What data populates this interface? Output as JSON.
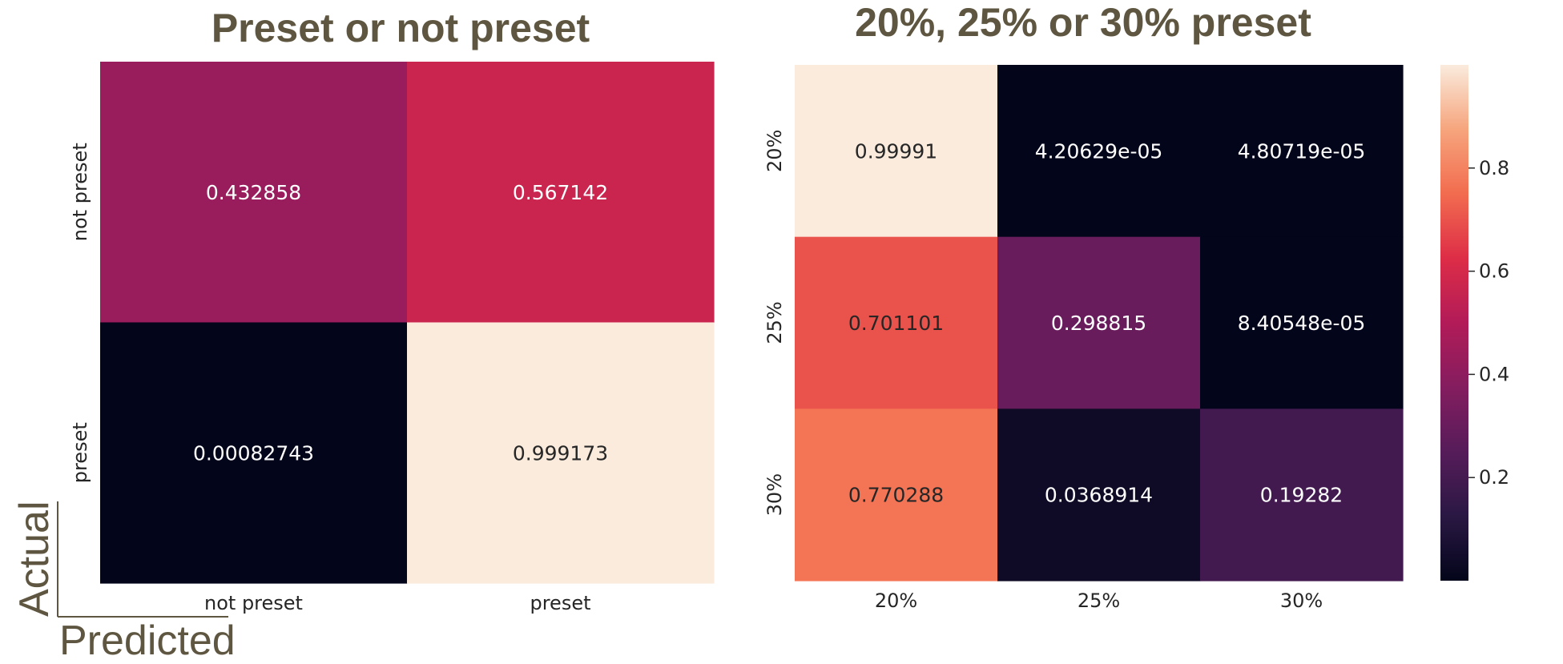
{
  "chart_data": [
    {
      "type": "heatmap",
      "title": "Preset or not preset",
      "x_categories": [
        "not preset",
        "preset"
      ],
      "y_categories": [
        "not preset",
        "preset"
      ],
      "values": [
        [
          0.432858,
          0.567142
        ],
        [
          0.00082743,
          0.999173
        ]
      ],
      "value_labels": [
        [
          "0.432858",
          "0.567142"
        ],
        [
          "0.00082743",
          "0.999173"
        ]
      ],
      "colormap": "rocket",
      "vmin": 0.0,
      "vmax": 1.0,
      "colorbar": false
    },
    {
      "type": "heatmap",
      "title": "20%, 25% or 30% preset",
      "x_categories": [
        "20%",
        "25%",
        "30%"
      ],
      "y_categories": [
        "20%",
        "25%",
        "30%"
      ],
      "values": [
        [
          0.99991,
          4.20629e-05,
          4.80719e-05
        ],
        [
          0.701101,
          0.298815,
          8.40548e-05
        ],
        [
          0.770288,
          0.0368914,
          0.19282
        ]
      ],
      "value_labels": [
        [
          "0.99991",
          "4.20629e-05",
          "4.80719e-05"
        ],
        [
          "0.701101",
          "0.298815",
          "8.40548e-05"
        ],
        [
          "0.770288",
          "0.0368914",
          "0.19282"
        ]
      ],
      "colormap": "rocket",
      "vmin": 0.0,
      "vmax": 1.0,
      "colorbar": true,
      "colorbar_ticks": [
        0.2,
        0.4,
        0.6,
        0.8
      ],
      "colorbar_tick_labels": [
        "0.2",
        "0.4",
        "0.6",
        "0.8"
      ]
    }
  ],
  "axis_corner": {
    "ylabel": "Actual",
    "xlabel": "Predicted"
  },
  "colors": {
    "title_text": "#5e5640",
    "tick_text": "#262626",
    "cell_text_light": "#ffffff",
    "cell_text_dark": "#262626"
  }
}
